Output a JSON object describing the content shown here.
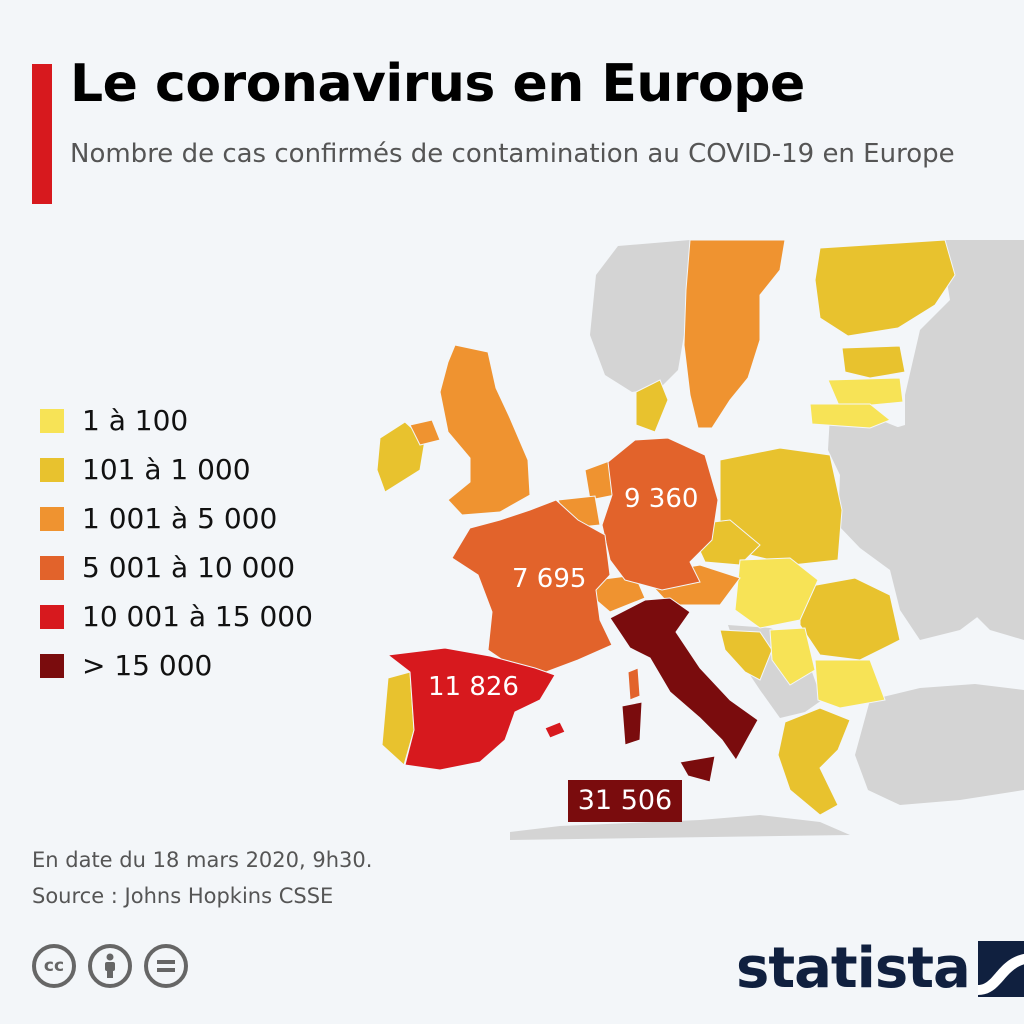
{
  "header": {
    "title": "Le coronavirus en Europe",
    "subtitle": "Nombre de cas confirmés de contamination au COVID-19 en Europe"
  },
  "legend": [
    {
      "label": "1 à 100",
      "color": "#f7e356"
    },
    {
      "label": "101 à 1 000",
      "color": "#e8c22e"
    },
    {
      "label": "1 001 à 5 000",
      "color": "#ef9330"
    },
    {
      "label": "5 001 à 10 000",
      "color": "#e2632b"
    },
    {
      "label": "10 001 à 15 000",
      "color": "#d7191e"
    },
    {
      "label": "> 15 000",
      "color": "#7a0c0d"
    }
  ],
  "map": {
    "no_data_color": "#d4d4d4",
    "countries": [
      {
        "name": "Italie",
        "cases": 31506,
        "cases_label": "31 506",
        "class": "> 15 000"
      },
      {
        "name": "Espagne",
        "cases": 11826,
        "cases_label": "11 826",
        "class": "10 001 à 15 000"
      },
      {
        "name": "Allemagne",
        "cases": 9360,
        "cases_label": "9 360",
        "class": "5 001 à 10 000"
      },
      {
        "name": "France",
        "cases": 7695,
        "cases_label": "7 695",
        "class": "5 001 à 10 000"
      }
    ]
  },
  "footer": {
    "date": "En date du 18 mars 2020, 9h30.",
    "source": "Source : Johns Hopkins CSSE",
    "license_icons": [
      "cc-icon",
      "attribution-icon",
      "no-derivatives-icon"
    ],
    "brand": "statista",
    "brand_color": "#10203f"
  }
}
